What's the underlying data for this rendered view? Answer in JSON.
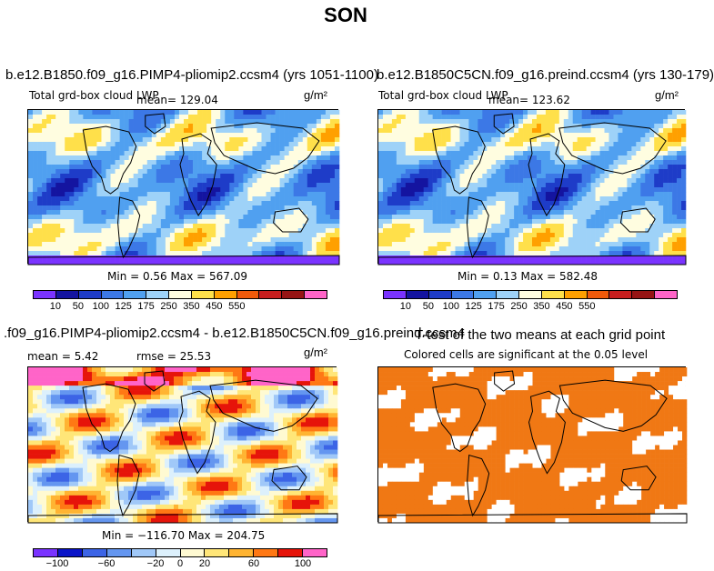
{
  "title": "SON",
  "panels": [
    {
      "title": "b.e12.B1850.f09_g16.PIMP4-pliomip2.ccsm4 (yrs 1051-1100)",
      "variable": "Total grd-box cloud LWP",
      "mean": "mean=  129.04",
      "units": "g/m²",
      "minmax": "Min =   0.56 Max = 567.09",
      "ticks": [
        "10",
        "50",
        "100",
        "125",
        "175",
        "250",
        "350",
        "450",
        "550"
      ]
    },
    {
      "title": "b.e12.B1850C5CN.f09_g16.preind.ccsm4 (yrs 130-179)",
      "variable": "Total grd-box cloud LWP",
      "mean": "mean=  123.62",
      "units": "g/m²",
      "minmax": "Min =   0.13 Max = 582.48",
      "ticks": [
        "10",
        "50",
        "100",
        "125",
        "175",
        "250",
        "350",
        "450",
        "550"
      ]
    },
    {
      "title": ".f09_g16.PIMP4-pliomip2.ccsm4 - b.e12.B1850C5CN.f09_g16.preind.ccsm4",
      "mean": "mean =   5.42",
      "rmse": "rmse =  25.53",
      "units": "g/m²",
      "minmax": "Min = −116.70 Max = 204.75",
      "ticks": [
        "−100",
        "−60",
        "−20",
        "0",
        "20",
        "60",
        "100"
      ]
    },
    {
      "title": "T-test of the two means at each grid point",
      "subtitle": "Colored cells are significant at the 0.05 level"
    }
  ],
  "colors": {
    "abs_scale": [
      "#7a33ff",
      "#1414a0",
      "#1e3cc8",
      "#3c78e6",
      "#50a0f0",
      "#9ed2f8",
      "#fffde0",
      "#ffe04a",
      "#ffa000",
      "#f05a0a",
      "#c81e1e",
      "#961414",
      "#ff64c8"
    ],
    "diff_scale": [
      "#7a33ff",
      "#0a14c8",
      "#3c64e6",
      "#6496f0",
      "#a0c8f8",
      "#dcf0fc",
      "#fffad2",
      "#ffe678",
      "#ffb432",
      "#ff7814",
      "#e6140a",
      "#ff64c8"
    ],
    "sig": "#f07814"
  }
}
